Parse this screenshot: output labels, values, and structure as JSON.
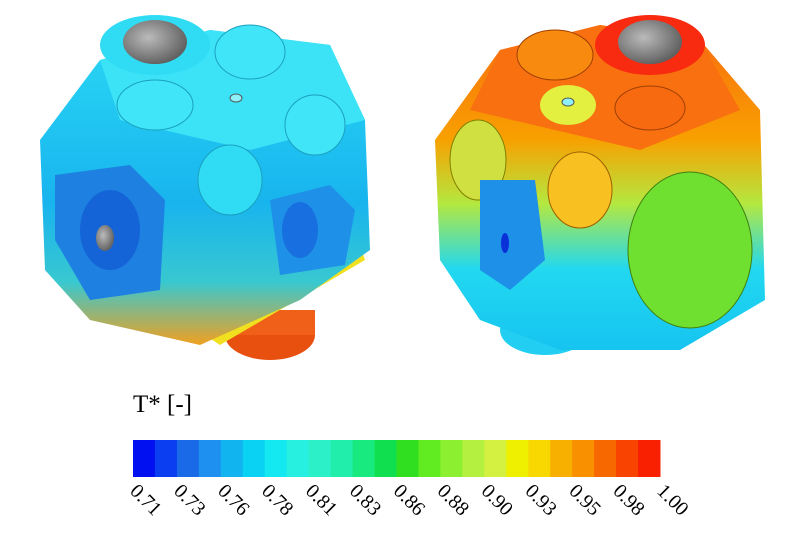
{
  "colorbar": {
    "title": "T* [-]",
    "colors": [
      "#0010f0",
      "#0a3ef0",
      "#1a6ae8",
      "#1e90f0",
      "#12b4f0",
      "#0ad2f2",
      "#14e8f0",
      "#28f0e0",
      "#2cf0c8",
      "#20eeaa",
      "#18ea80",
      "#10e050",
      "#30e020",
      "#60ec20",
      "#8cf030",
      "#b4f040",
      "#d4f040",
      "#eef000",
      "#f8d800",
      "#f8b000",
      "#f89000",
      "#f86800",
      "#f84400",
      "#f82000"
    ],
    "ticks": [
      "0.71",
      "0.73",
      "0.76",
      "0.78",
      "0.81",
      "0.83",
      "0.86",
      "0.88",
      "0.90",
      "0.93",
      "0.95",
      "0.98",
      "1.00"
    ]
  }
}
